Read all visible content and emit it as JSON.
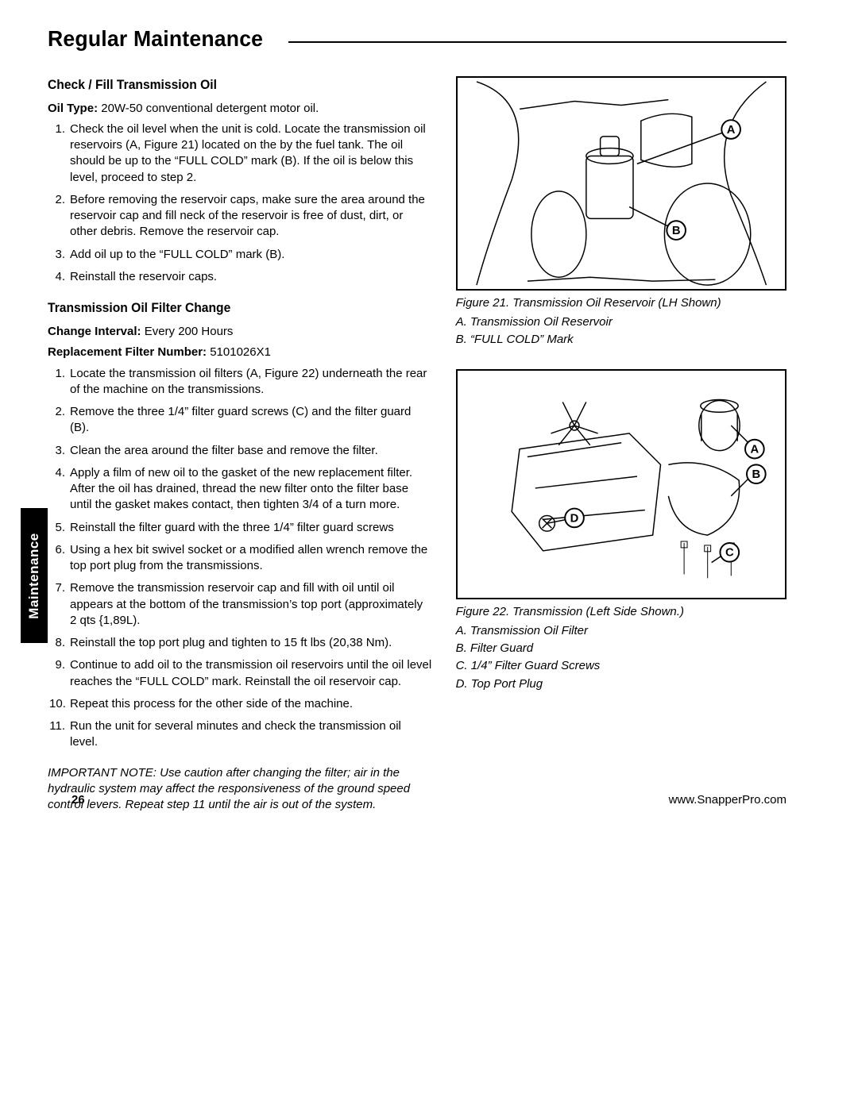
{
  "header": {
    "title": "Regular Maintenance"
  },
  "sideTab": {
    "label": "Maintenance"
  },
  "sectionA": {
    "heading": "Check / Fill Transmission Oil",
    "oilType": {
      "label": "Oil Type:",
      "value": "  20W-50 conventional detergent motor oil."
    },
    "steps": [
      "Check the oil level when the unit is cold.  Locate the transmission oil reservoirs (A, Figure 21) located on the by the fuel tank.  The oil should be up to the “FULL COLD” mark (B).  If the oil is below this level, proceed to step 2.",
      "Before removing the reservoir caps, make sure the area around the reservoir cap and fill neck of the reservoir is free of dust, dirt, or other debris.  Remove the reservoir cap.",
      "Add oil up to the “FULL COLD” mark (B).",
      "Reinstall the reservoir caps."
    ]
  },
  "sectionB": {
    "heading": "Transmission Oil Filter Change",
    "interval": {
      "label": "Change Interval:",
      "value": " Every 200 Hours"
    },
    "filterNum": {
      "label": "Replacement Filter Number:",
      "value": " 5101026X1"
    },
    "steps": [
      "Locate the transmission oil filters (A, Figure 22) underneath the rear of the machine on the transmissions.",
      "Remove the three 1/4” filter guard screws (C) and the filter guard (B).",
      "Clean the area around the filter base and remove the filter.",
      "Apply a film of new oil to the gasket of the new replacement filter.  After the oil has drained, thread the new filter onto the filter base until the gasket makes contact, then tighten 3/4 of a turn more.",
      "Reinstall the filter guard with the three 1/4” filter guard screws",
      "Using a hex bit swivel socket or a modified allen wrench remove the top port plug from the transmissions.",
      "Remove the transmission reservoir cap and fill with oil until oil appears at the bottom of the transmission’s top port (approximately 2 qts {1,89L).",
      "Reinstall the top port plug and tighten to 15 ft lbs (20,38 Nm).",
      "Continue to add oil to the transmission oil reservoirs until the oil level reaches the “FULL COLD” mark.  Reinstall the oil reservoir cap.",
      "Repeat this process for the other side of the machine.",
      "Run the unit for several minutes and check the transmission oil level."
    ],
    "note": "IMPORTANT NOTE: Use caution after changing the filter; air in the hydraulic system may affect the responsiveness of the ground speed control levers.  Repeat step 11 until the air is out of the system."
  },
  "figure21": {
    "caption": "Figure 21.  Transmission Oil Reservoir (LH Shown)",
    "legend": [
      "A.  Transmission Oil Reservoir",
      "B.  “FULL COLD” Mark"
    ],
    "callouts": [
      "A",
      "B"
    ]
  },
  "figure22": {
    "caption": "Figure 22.  Transmission (Left Side Shown.)",
    "legend": [
      "A.  Transmission Oil Filter",
      "B.  Filter Guard",
      "C.  1/4” Filter Guard Screws",
      "D.  Top Port Plug"
    ],
    "callouts": [
      "A",
      "B",
      "C",
      "D"
    ]
  },
  "footer": {
    "page": "26",
    "url": "www.SnapperPro.com"
  },
  "style": {
    "pageWidth": 1080,
    "pageHeight": 1397,
    "bodyFontSize": 15,
    "h1FontSize": 28,
    "h2FontSize": 17,
    "textColor": "#000000",
    "bgColor": "#ffffff",
    "borderColor": "#000000",
    "tabBg": "#000000",
    "tabColor": "#ffffff"
  }
}
